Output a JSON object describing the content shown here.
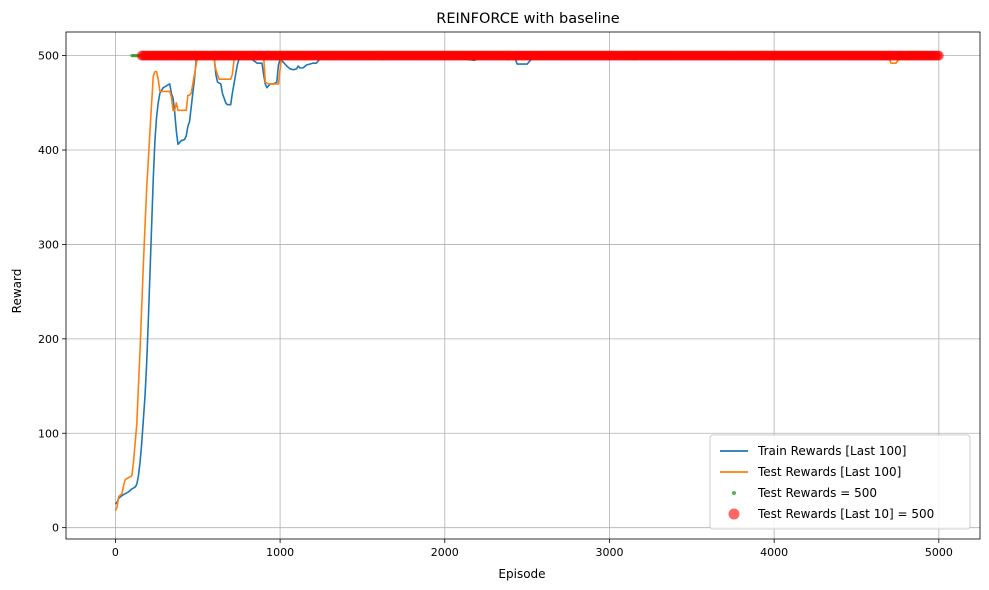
{
  "chart_data": {
    "type": "line",
    "title": "REINFORCE with baseline",
    "xlabel": "Episode",
    "ylabel": "Reward",
    "xlim": [
      -300,
      5250
    ],
    "ylim": [
      -12,
      525
    ],
    "xticks": [
      0,
      1000,
      2000,
      3000,
      4000,
      5000
    ],
    "yticks": [
      0,
      100,
      200,
      300,
      400,
      500
    ],
    "grid": true,
    "legend_position": "lower-right",
    "series": [
      {
        "name": "Train Rewards [Last 100]",
        "type": "line",
        "color": "#1f77b4",
        "points": [
          [
            0,
            25
          ],
          [
            10,
            27
          ],
          [
            20,
            31
          ],
          [
            40,
            34
          ],
          [
            60,
            36
          ],
          [
            80,
            38
          ],
          [
            100,
            41
          ],
          [
            120,
            43
          ],
          [
            130,
            46
          ],
          [
            140,
            55
          ],
          [
            150,
            70
          ],
          [
            160,
            90
          ],
          [
            170,
            115
          ],
          [
            180,
            140
          ],
          [
            190,
            175
          ],
          [
            200,
            220
          ],
          [
            210,
            270
          ],
          [
            220,
            320
          ],
          [
            230,
            370
          ],
          [
            240,
            410
          ],
          [
            250,
            435
          ],
          [
            260,
            450
          ],
          [
            270,
            460
          ],
          [
            280,
            463
          ],
          [
            290,
            466
          ],
          [
            300,
            467
          ],
          [
            310,
            468
          ],
          [
            320,
            469
          ],
          [
            330,
            470
          ],
          [
            340,
            460
          ],
          [
            350,
            455
          ],
          [
            360,
            440
          ],
          [
            370,
            420
          ],
          [
            380,
            406
          ],
          [
            390,
            408
          ],
          [
            400,
            410
          ],
          [
            420,
            411
          ],
          [
            430,
            415
          ],
          [
            440,
            425
          ],
          [
            450,
            430
          ],
          [
            460,
            445
          ],
          [
            470,
            460
          ],
          [
            480,
            475
          ],
          [
            490,
            495
          ],
          [
            500,
            499
          ],
          [
            540,
            499
          ],
          [
            580,
            499
          ],
          [
            600,
            498
          ],
          [
            610,
            480
          ],
          [
            620,
            472
          ],
          [
            640,
            470
          ],
          [
            650,
            460
          ],
          [
            660,
            455
          ],
          [
            670,
            450
          ],
          [
            680,
            448
          ],
          [
            700,
            448
          ],
          [
            710,
            460
          ],
          [
            720,
            470
          ],
          [
            730,
            480
          ],
          [
            740,
            490
          ],
          [
            750,
            496
          ],
          [
            760,
            499
          ],
          [
            800,
            499
          ],
          [
            830,
            496
          ],
          [
            860,
            492
          ],
          [
            890,
            492
          ],
          [
            900,
            480
          ],
          [
            910,
            470
          ],
          [
            920,
            466
          ],
          [
            930,
            468
          ],
          [
            940,
            470
          ],
          [
            960,
            470
          ],
          [
            980,
            472
          ],
          [
            990,
            490
          ],
          [
            1000,
            496
          ],
          [
            1020,
            493
          ],
          [
            1040,
            489
          ],
          [
            1060,
            486
          ],
          [
            1080,
            485
          ],
          [
            1100,
            486
          ],
          [
            1110,
            489
          ],
          [
            1120,
            487
          ],
          [
            1140,
            487
          ],
          [
            1160,
            490
          ],
          [
            1180,
            491
          ],
          [
            1200,
            492
          ],
          [
            1220,
            492
          ],
          [
            1240,
            496
          ],
          [
            1260,
            499
          ],
          [
            1300,
            500
          ],
          [
            1700,
            500
          ],
          [
            1720,
            498
          ],
          [
            1800,
            498
          ],
          [
            1820,
            500
          ],
          [
            2080,
            500
          ],
          [
            2100,
            497
          ],
          [
            2180,
            495
          ],
          [
            2200,
            497
          ],
          [
            2260,
            500
          ],
          [
            2420,
            500
          ],
          [
            2440,
            491
          ],
          [
            2500,
            491
          ],
          [
            2540,
            499
          ],
          [
            2560,
            500
          ],
          [
            3000,
            500
          ],
          [
            4000,
            500
          ],
          [
            4650,
            500
          ],
          [
            4660,
            498
          ],
          [
            4760,
            498
          ],
          [
            4780,
            500
          ],
          [
            5000,
            500
          ]
        ]
      },
      {
        "name": "Test Rewards [Last 100]",
        "type": "line",
        "color": "#ff7f0e",
        "points": [
          [
            0,
            18
          ],
          [
            10,
            22
          ],
          [
            20,
            33
          ],
          [
            40,
            36
          ],
          [
            50,
            45
          ],
          [
            60,
            51
          ],
          [
            80,
            53
          ],
          [
            100,
            55
          ],
          [
            110,
            70
          ],
          [
            120,
            90
          ],
          [
            130,
            110
          ],
          [
            140,
            150
          ],
          [
            150,
            190
          ],
          [
            160,
            235
          ],
          [
            170,
            280
          ],
          [
            180,
            320
          ],
          [
            190,
            360
          ],
          [
            200,
            390
          ],
          [
            210,
            420
          ],
          [
            220,
            450
          ],
          [
            230,
            478
          ],
          [
            240,
            483
          ],
          [
            250,
            483
          ],
          [
            260,
            475
          ],
          [
            270,
            462
          ],
          [
            300,
            462
          ],
          [
            330,
            462
          ],
          [
            340,
            456
          ],
          [
            350,
            442
          ],
          [
            360,
            442
          ],
          [
            370,
            450
          ],
          [
            380,
            442
          ],
          [
            400,
            442
          ],
          [
            430,
            442
          ],
          [
            440,
            458
          ],
          [
            450,
            458
          ],
          [
            460,
            460
          ],
          [
            470,
            470
          ],
          [
            480,
            480
          ],
          [
            490,
            490
          ],
          [
            500,
            500
          ],
          [
            580,
            500
          ],
          [
            600,
            496
          ],
          [
            610,
            485
          ],
          [
            630,
            475
          ],
          [
            650,
            475
          ],
          [
            670,
            475
          ],
          [
            700,
            475
          ],
          [
            710,
            480
          ],
          [
            720,
            495
          ],
          [
            730,
            500
          ],
          [
            900,
            500
          ],
          [
            910,
            472
          ],
          [
            930,
            470
          ],
          [
            960,
            470
          ],
          [
            990,
            470
          ],
          [
            1000,
            485
          ],
          [
            1010,
            500
          ],
          [
            4640,
            500
          ],
          [
            4660,
            496
          ],
          [
            4700,
            496
          ],
          [
            4710,
            492
          ],
          [
            4740,
            492
          ],
          [
            4760,
            497
          ],
          [
            4800,
            497
          ],
          [
            4820,
            500
          ],
          [
            5000,
            500
          ]
        ]
      },
      {
        "name": "Test Rewards = 500",
        "type": "scatter",
        "color": "#2ca02c",
        "marker_size": "small",
        "x_ranges": [
          [
            100,
            5000
          ]
        ],
        "y": 500
      },
      {
        "name": "Test Rewards [Last 10] = 500",
        "type": "scatter",
        "color": "#ff0000",
        "marker_size": "large",
        "x_ranges": [
          [
            160,
            5000
          ]
        ],
        "y": 500
      }
    ]
  }
}
